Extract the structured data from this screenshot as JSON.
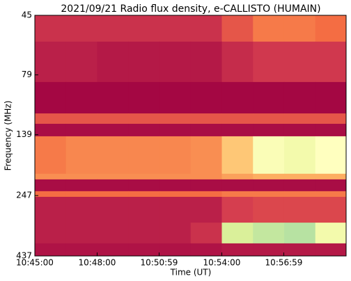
{
  "chart_data": {
    "type": "heatmap",
    "title": "2021/09/21  Radio flux density, e-CALLISTO (HUMAIN)",
    "xlabel": "Time (UT)",
    "ylabel": "Frequency (MHz)",
    "xlim": [
      "10:45:00",
      "10:59:59"
    ],
    "xticks": [
      "10:45:00",
      "10:48:00",
      "10:50:59",
      "10:54:00",
      "10:56:59"
    ],
    "ylim": [
      45,
      437
    ],
    "yticks": [
      45,
      79,
      139,
      247,
      437
    ],
    "yscale": "log",
    "y_inverted": true,
    "time_bins": [
      "10:45:00",
      "10:46:30",
      "10:48:00",
      "10:49:30",
      "10:51:00",
      "10:52:30",
      "10:54:00",
      "10:55:30",
      "10:57:00",
      "10:58:30",
      "10:59:59"
    ],
    "freq_bins": [
      45,
      57.7,
      84.5,
      113.7,
      125.4,
      141.1,
      201,
      212,
      237,
      250,
      319,
      388,
      437
    ],
    "zlim": [
      0,
      1
    ],
    "colormap": [
      "#9e0142",
      "#d53e4f",
      "#f46d43",
      "#fdae61",
      "#fee08b",
      "#ffffbf",
      "#e6f598",
      "#abdda4",
      "#66c2a5",
      "#3288bd",
      "#5e4fa2"
    ],
    "z": [
      [
        0.08,
        0.08,
        0.08,
        0.08,
        0.08,
        0.08,
        0.15,
        0.22,
        0.22,
        0.2
      ],
      [
        0.05,
        0.05,
        0.04,
        0.04,
        0.04,
        0.04,
        0.07,
        0.09,
        0.09,
        0.09
      ],
      [
        0.01,
        0.01,
        0.01,
        0.01,
        0.01,
        0.01,
        0.01,
        0.01,
        0.01,
        0.01
      ],
      [
        0.15,
        0.15,
        0.15,
        0.15,
        0.15,
        0.15,
        0.15,
        0.15,
        0.15,
        0.15
      ],
      [
        0.02,
        0.02,
        0.02,
        0.02,
        0.02,
        0.02,
        0.02,
        0.02,
        0.02,
        0.02
      ],
      [
        0.22,
        0.24,
        0.24,
        0.24,
        0.24,
        0.25,
        0.35,
        0.52,
        0.55,
        0.5
      ],
      [
        0.25,
        0.25,
        0.25,
        0.25,
        0.25,
        0.25,
        0.28,
        0.3,
        0.3,
        0.3
      ],
      [
        0.02,
        0.02,
        0.02,
        0.02,
        0.02,
        0.02,
        0.02,
        0.02,
        0.02,
        0.02
      ],
      [
        0.2,
        0.2,
        0.2,
        0.2,
        0.2,
        0.2,
        0.22,
        0.22,
        0.22,
        0.22
      ],
      [
        0.05,
        0.05,
        0.05,
        0.05,
        0.05,
        0.05,
        0.1,
        0.12,
        0.12,
        0.12
      ],
      [
        0.05,
        0.05,
        0.05,
        0.05,
        0.05,
        0.08,
        0.62,
        0.66,
        0.68,
        0.55
      ],
      [
        0.03,
        0.03,
        0.03,
        0.03,
        0.03,
        0.03,
        0.04,
        0.04,
        0.04,
        0.04
      ]
    ]
  }
}
